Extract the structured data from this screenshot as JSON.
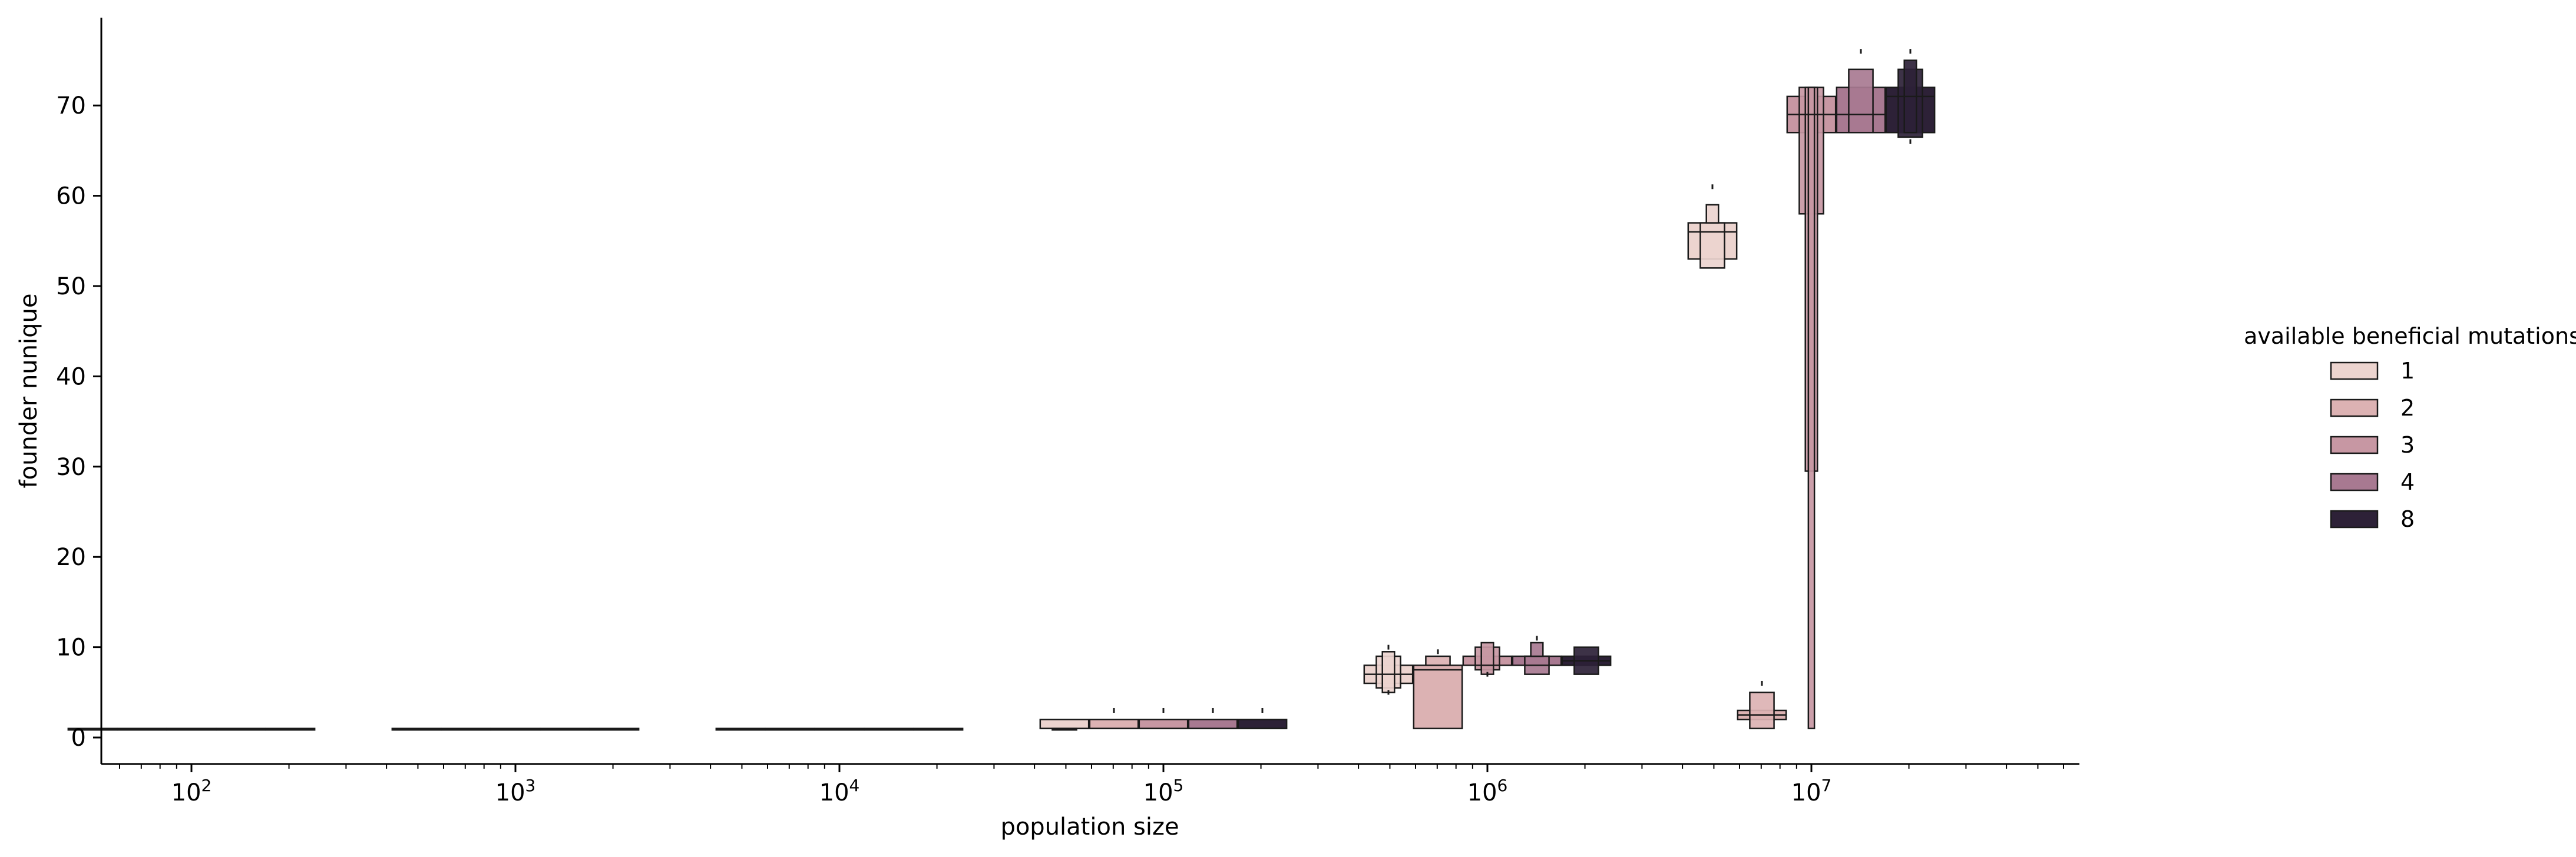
{
  "chart_data": {
    "type": "boxen",
    "xlabel": "population size",
    "ylabel": "founder nunique",
    "x_scale": "log",
    "x_ticks": [
      {
        "value": 100,
        "base": "10",
        "exp": "2"
      },
      {
        "value": 1000,
        "base": "10",
        "exp": "3"
      },
      {
        "value": 10000,
        "base": "10",
        "exp": "4"
      },
      {
        "value": 100000,
        "base": "10",
        "exp": "5"
      },
      {
        "value": 1000000,
        "base": "10",
        "exp": "6"
      },
      {
        "value": 10000000,
        "base": "10",
        "exp": "7"
      }
    ],
    "y_ticks": [
      "0",
      "10",
      "20",
      "30",
      "40",
      "50",
      "60",
      "70"
    ],
    "ylim": [
      -2.5,
      79
    ],
    "grid": false,
    "legend": {
      "title": "available beneficial mutations",
      "placement": "right",
      "entries": [
        {
          "label": "1",
          "color": "#ecd4cf"
        },
        {
          "label": "2",
          "color": "#dcb2b3"
        },
        {
          "label": "3",
          "color": "#c797a3"
        },
        {
          "label": "4",
          "color": "#a87991"
        },
        {
          "label": "8",
          "color": "#2d2137"
        }
      ]
    },
    "groups": [
      {
        "population": 100,
        "boxes": [
          {
            "hue": "1",
            "levels": [
              [
                1,
                1
              ]
            ]
          },
          {
            "hue": "2",
            "levels": [
              [
                1,
                1
              ]
            ]
          },
          {
            "hue": "3",
            "levels": [
              [
                1,
                1
              ]
            ]
          },
          {
            "hue": "4",
            "levels": [
              [
                1,
                1
              ]
            ]
          },
          {
            "hue": "8",
            "levels": [
              [
                1,
                1
              ]
            ]
          }
        ]
      },
      {
        "population": 1000,
        "boxes": [
          {
            "hue": "1",
            "levels": [
              [
                1,
                1
              ]
            ]
          },
          {
            "hue": "2",
            "levels": [
              [
                1,
                1
              ]
            ]
          },
          {
            "hue": "3",
            "levels": [
              [
                1,
                1
              ]
            ]
          },
          {
            "hue": "4",
            "levels": [
              [
                1,
                1
              ]
            ]
          },
          {
            "hue": "8",
            "levels": [
              [
                1,
                1
              ]
            ]
          }
        ]
      },
      {
        "population": 10000,
        "boxes": [
          {
            "hue": "1",
            "levels": [
              [
                1,
                1
              ]
            ]
          },
          {
            "hue": "2",
            "levels": [
              [
                1,
                1
              ]
            ]
          },
          {
            "hue": "3",
            "levels": [
              [
                1,
                1
              ]
            ]
          },
          {
            "hue": "4",
            "levels": [
              [
                1,
                1
              ]
            ]
          },
          {
            "hue": "8",
            "levels": [
              [
                1,
                1
              ]
            ]
          }
        ]
      },
      {
        "population": 100000,
        "boxes": [
          {
            "hue": "1",
            "levels": [
              [
                1,
                2
              ],
              [
                1,
                1
              ]
            ],
            "median": 1
          },
          {
            "hue": "2",
            "levels": [
              [
                1,
                2
              ]
            ],
            "median": 1,
            "outliers": [
              3
            ]
          },
          {
            "hue": "3",
            "levels": [
              [
                1,
                2
              ]
            ],
            "median": 1,
            "outliers": [
              3
            ]
          },
          {
            "hue": "4",
            "levels": [
              [
                1,
                2
              ]
            ],
            "median": 1,
            "outliers": [
              3
            ]
          },
          {
            "hue": "8",
            "levels": [
              [
                1,
                2
              ]
            ],
            "median": 1,
            "outliers": [
              3
            ]
          }
        ]
      },
      {
        "population": 1000000,
        "boxes": [
          {
            "hue": "1",
            "levels": [
              [
                6,
                8
              ],
              [
                5.5,
                9
              ],
              [
                5,
                9.5
              ]
            ],
            "median": 7,
            "outliers": [
              10,
              5
            ]
          },
          {
            "hue": "2",
            "levels": [
              [
                1,
                8
              ],
              [
                8,
                9
              ]
            ],
            "median": 7.5,
            "outliers": [
              9.5
            ]
          },
          {
            "hue": "3",
            "levels": [
              [
                8,
                9
              ],
              [
                7.5,
                10
              ],
              [
                7,
                10.5
              ]
            ],
            "median": 8,
            "outliers": [
              7
            ]
          },
          {
            "hue": "4",
            "levels": [
              [
                8,
                9
              ],
              [
                7,
                9
              ],
              [
                9,
                10.5
              ]
            ],
            "median": 8,
            "outliers": [
              11
            ]
          },
          {
            "hue": "8",
            "levels": [
              [
                8,
                9
              ],
              [
                7,
                10
              ]
            ],
            "median": 8.5
          }
        ]
      },
      {
        "population": 10000000,
        "boxes": [
          {
            "hue": "1",
            "levels": [
              [
                53,
                57
              ],
              [
                52,
                57
              ],
              [
                57,
                59
              ]
            ],
            "median": 56,
            "outliers": [
              61
            ]
          },
          {
            "hue": "2",
            "levels": [
              [
                2,
                3
              ],
              [
                1,
                5
              ]
            ],
            "median": 2.5,
            "outliers": [
              6
            ]
          },
          {
            "hue": "3",
            "levels": [
              [
                67,
                71
              ],
              [
                58,
                72
              ],
              [
                29.5,
                72
              ],
              [
                1,
                72
              ]
            ],
            "median": 69
          },
          {
            "hue": "4",
            "levels": [
              [
                67,
                72
              ],
              [
                67,
                74
              ]
            ],
            "median": 69,
            "outliers": [
              76
            ]
          },
          {
            "hue": "8",
            "levels": [
              [
                67,
                72
              ],
              [
                66.5,
                74
              ],
              [
                67,
                75
              ]
            ],
            "median": 71,
            "outliers": [
              76,
              66
            ]
          }
        ]
      }
    ]
  }
}
